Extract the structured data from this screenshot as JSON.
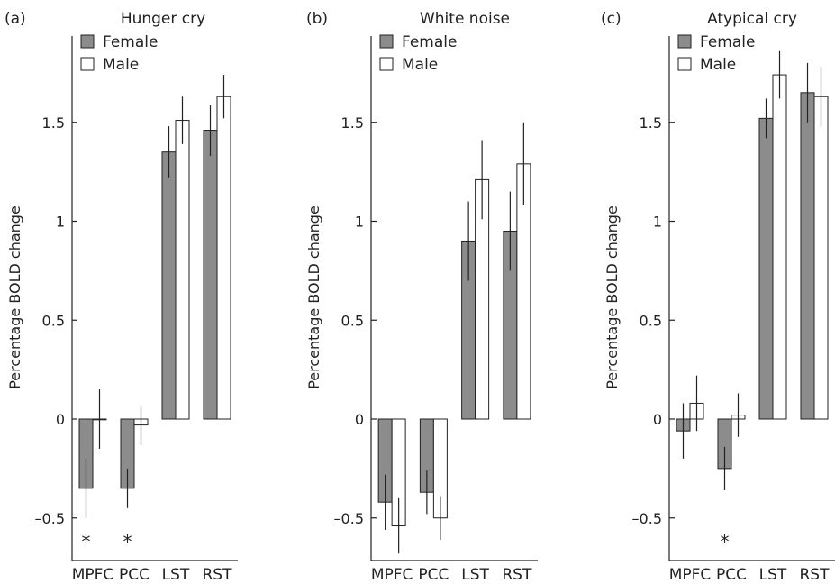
{
  "figure": {
    "colors": {
      "female": "#8c8c8c",
      "male": "#ffffff",
      "stroke": "#222222"
    },
    "ylabel": "Percentage BOLD change",
    "legend": [
      "Female",
      "Male"
    ]
  },
  "chart_data": [
    {
      "type": "bar",
      "panel_label": "(a)",
      "title": "Hunger cry",
      "ylabel": "Percentage BOLD change",
      "categories": [
        "MPFC",
        "PCC",
        "LST",
        "RST"
      ],
      "ylim": [
        -0.7,
        1.9
      ],
      "yticks": [
        "1.5",
        "1",
        "0.5",
        "0",
        "–0.5"
      ],
      "legend_position": "top-left",
      "grid": false,
      "series": [
        {
          "name": "Female",
          "values": [
            -0.35,
            -0.35,
            1.35,
            1.46
          ],
          "errors": [
            0.15,
            0.1,
            0.13,
            0.13
          ]
        },
        {
          "name": "Male",
          "values": [
            0.0,
            -0.03,
            1.51,
            1.63
          ],
          "errors": [
            0.15,
            0.1,
            0.12,
            0.11
          ]
        }
      ],
      "annotations": [
        {
          "text": "*",
          "category": "MPFC",
          "series": "Female"
        },
        {
          "text": "*",
          "category": "PCC",
          "series": "Female"
        }
      ]
    },
    {
      "type": "bar",
      "panel_label": "(b)",
      "title": "White noise",
      "ylabel": "Percentage BOLD change",
      "categories": [
        "MPFC",
        "PCC",
        "LST",
        "RST"
      ],
      "ylim": [
        -0.7,
        1.9
      ],
      "yticks": [
        "1.5",
        "1",
        "0.5",
        "0",
        "–0.5"
      ],
      "legend_position": "top-left",
      "grid": false,
      "series": [
        {
          "name": "Female",
          "values": [
            -0.42,
            -0.37,
            0.9,
            0.95
          ],
          "errors": [
            0.14,
            0.11,
            0.2,
            0.2
          ]
        },
        {
          "name": "Male",
          "values": [
            -0.54,
            -0.5,
            1.21,
            1.29
          ],
          "errors": [
            0.14,
            0.11,
            0.2,
            0.21
          ]
        }
      ],
      "annotations": []
    },
    {
      "type": "bar",
      "panel_label": "(c)",
      "title": "Atypical cry",
      "ylabel": "Percentage BOLD change",
      "categories": [
        "MPFC",
        "PCC",
        "LST",
        "RST"
      ],
      "ylim": [
        -0.7,
        1.9
      ],
      "yticks": [
        "1.5",
        "1",
        "0.5",
        "0",
        "–0.5"
      ],
      "legend_position": "top-left",
      "grid": false,
      "series": [
        {
          "name": "Female",
          "values": [
            -0.06,
            -0.25,
            1.52,
            1.65
          ],
          "errors": [
            0.14,
            0.11,
            0.1,
            0.15
          ]
        },
        {
          "name": "Male",
          "values": [
            0.08,
            0.02,
            1.74,
            1.63
          ],
          "errors": [
            0.14,
            0.11,
            0.12,
            0.15
          ]
        }
      ],
      "annotations": [
        {
          "text": "*",
          "category": "PCC",
          "series": "Female"
        }
      ]
    }
  ]
}
